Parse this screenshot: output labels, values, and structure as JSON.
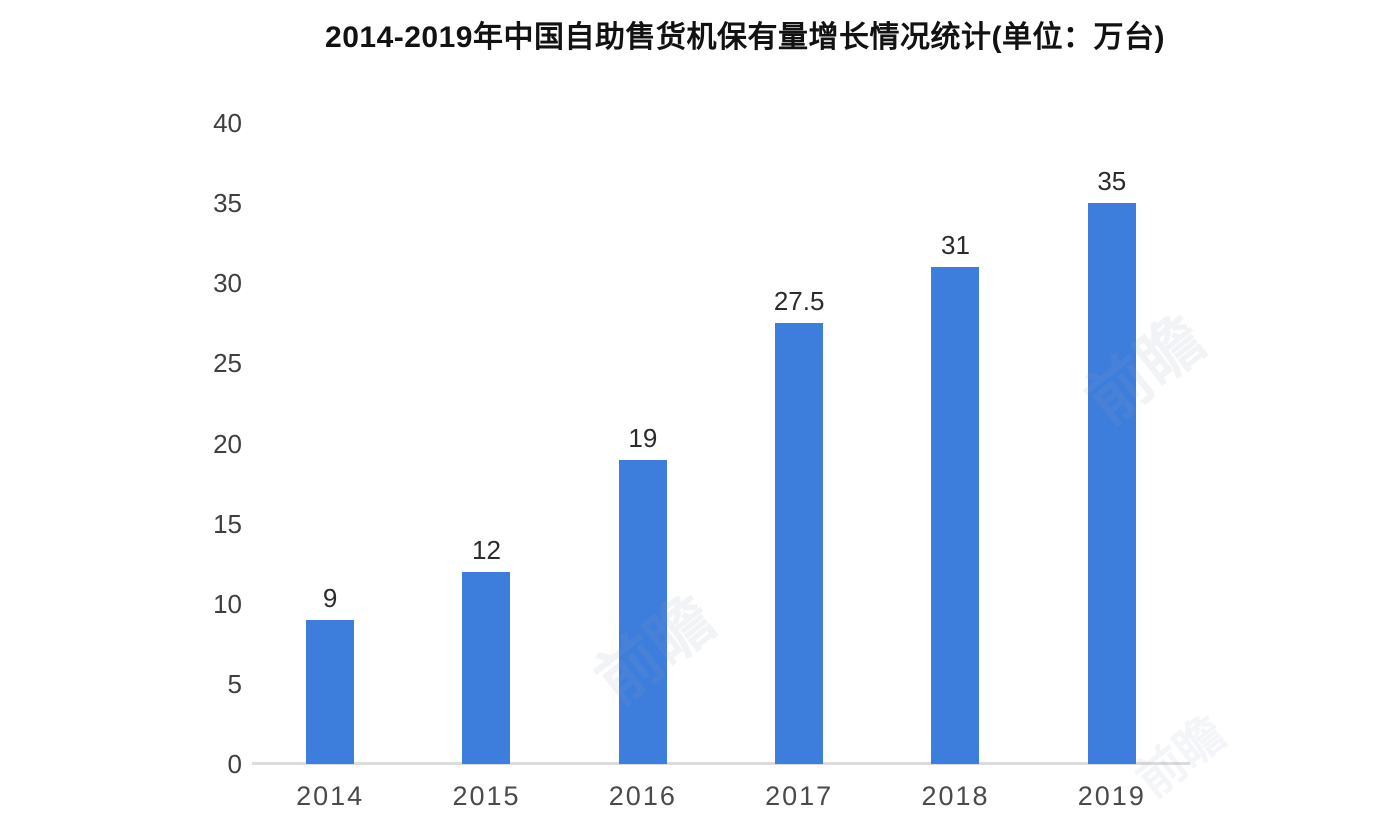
{
  "title": "2014-2019年中国自助售货机保有量增长情况统计(单位：万台)",
  "watermark": {
    "text": "前瞻"
  },
  "chart_data": {
    "type": "bar",
    "title": "2014-2019年中国自助售货机保有量增长情况统计(单位：万台)",
    "categories": [
      "2014",
      "2015",
      "2016",
      "2017",
      "2018",
      "2019"
    ],
    "values": [
      9,
      12,
      19,
      27.5,
      31,
      35
    ],
    "value_labels": [
      "9",
      "12",
      "19",
      "27.5",
      "31",
      "35"
    ],
    "xlabel": "",
    "ylabel": "",
    "ylim": [
      0,
      40
    ],
    "yticks": [
      0,
      5,
      10,
      15,
      20,
      25,
      30,
      35,
      40
    ],
    "grid": false,
    "legend": "none",
    "bar_color": "#3d7edd",
    "axis_line_color": "#dcdcdc",
    "tick_label_color": "#3f3f3f",
    "data_label_color": "#2b2b2b",
    "title_color": "#121212",
    "background_color": "#ffffff"
  }
}
